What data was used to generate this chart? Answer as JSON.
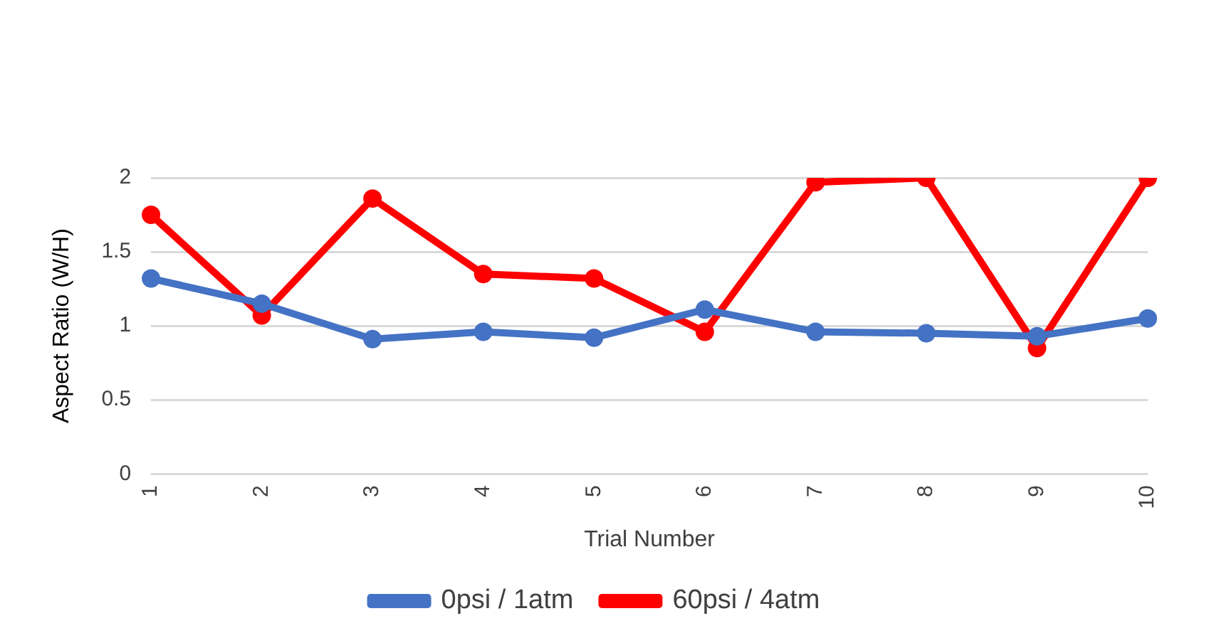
{
  "chart_data": {
    "type": "line",
    "xlabel": "Trial Number",
    "ylabel": "Aspect Ratio (W/H)",
    "categories": [
      "1",
      "2",
      "3",
      "4",
      "5",
      "6",
      "7",
      "8",
      "9",
      "10"
    ],
    "series": [
      {
        "name": "0psi / 1atm",
        "color": "#4472c4",
        "values": [
          1.32,
          1.15,
          0.91,
          0.96,
          0.92,
          1.11,
          0.96,
          0.95,
          0.93,
          1.05
        ]
      },
      {
        "name": "60psi / 4atm",
        "color": "#ff0000",
        "values": [
          1.75,
          1.07,
          1.86,
          1.35,
          1.32,
          0.96,
          1.97,
          2.0,
          0.85,
          2.0
        ]
      }
    ],
    "ylim": [
      0,
      2
    ],
    "yticks": [
      0,
      0.5,
      1,
      1.5,
      2
    ],
    "grid": "y",
    "legend": "bottom",
    "marker": "circle",
    "line_style": "solid"
  }
}
